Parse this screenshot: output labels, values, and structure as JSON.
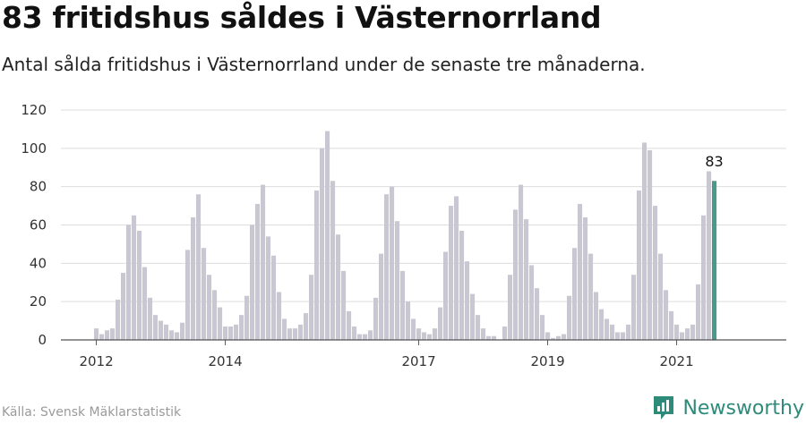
{
  "title": "83 fritidshus såldes i Västernorrland",
  "subtitle": "Antal sålda fritidshus i Västernorrland under de senaste tre månaderna.",
  "source": "Källa: Svensk Mäklarstatistik",
  "brand": {
    "name": "Newsworthy",
    "icon": "newsworthy-logo-icon",
    "color": "#2e8b7a"
  },
  "colors": {
    "bar": "#c9c7d4",
    "highlight": "#4a9a8c",
    "grid": "#dddddd",
    "axis": "#555555"
  },
  "chart_data": {
    "type": "bar",
    "title": "83 fritidshus såldes i Västernorrland",
    "xlabel": "",
    "ylabel": "",
    "ylim": [
      0,
      120
    ],
    "yticks": [
      0,
      20,
      40,
      60,
      80,
      100,
      120
    ],
    "xtick_labels": [
      "2012",
      "2014",
      "2017",
      "2019",
      "2021"
    ],
    "xtick_indices": [
      0,
      24,
      60,
      84,
      108
    ],
    "grid": true,
    "highlight_label": "83",
    "values": [
      6,
      3,
      5,
      6,
      21,
      35,
      60,
      65,
      57,
      38,
      22,
      13,
      10,
      8,
      5,
      4,
      9,
      47,
      64,
      76,
      48,
      34,
      26,
      17,
      7,
      7,
      8,
      13,
      23,
      60,
      71,
      81,
      54,
      44,
      25,
      11,
      6,
      6,
      8,
      14,
      34,
      78,
      100,
      109,
      83,
      55,
      36,
      15,
      7,
      3,
      3,
      5,
      22,
      45,
      76,
      80,
      62,
      36,
      20,
      11,
      6,
      4,
      3,
      6,
      17,
      46,
      70,
      75,
      57,
      41,
      24,
      13,
      6,
      2,
      2,
      0,
      7,
      34,
      68,
      81,
      63,
      39,
      27,
      13,
      4,
      1,
      2,
      3,
      23,
      48,
      71,
      64,
      45,
      25,
      16,
      11,
      8,
      4,
      4,
      8,
      34,
      78,
      103,
      99,
      70,
      45,
      26,
      15,
      8,
      4,
      6,
      8,
      29,
      65,
      88,
      83
    ]
  }
}
